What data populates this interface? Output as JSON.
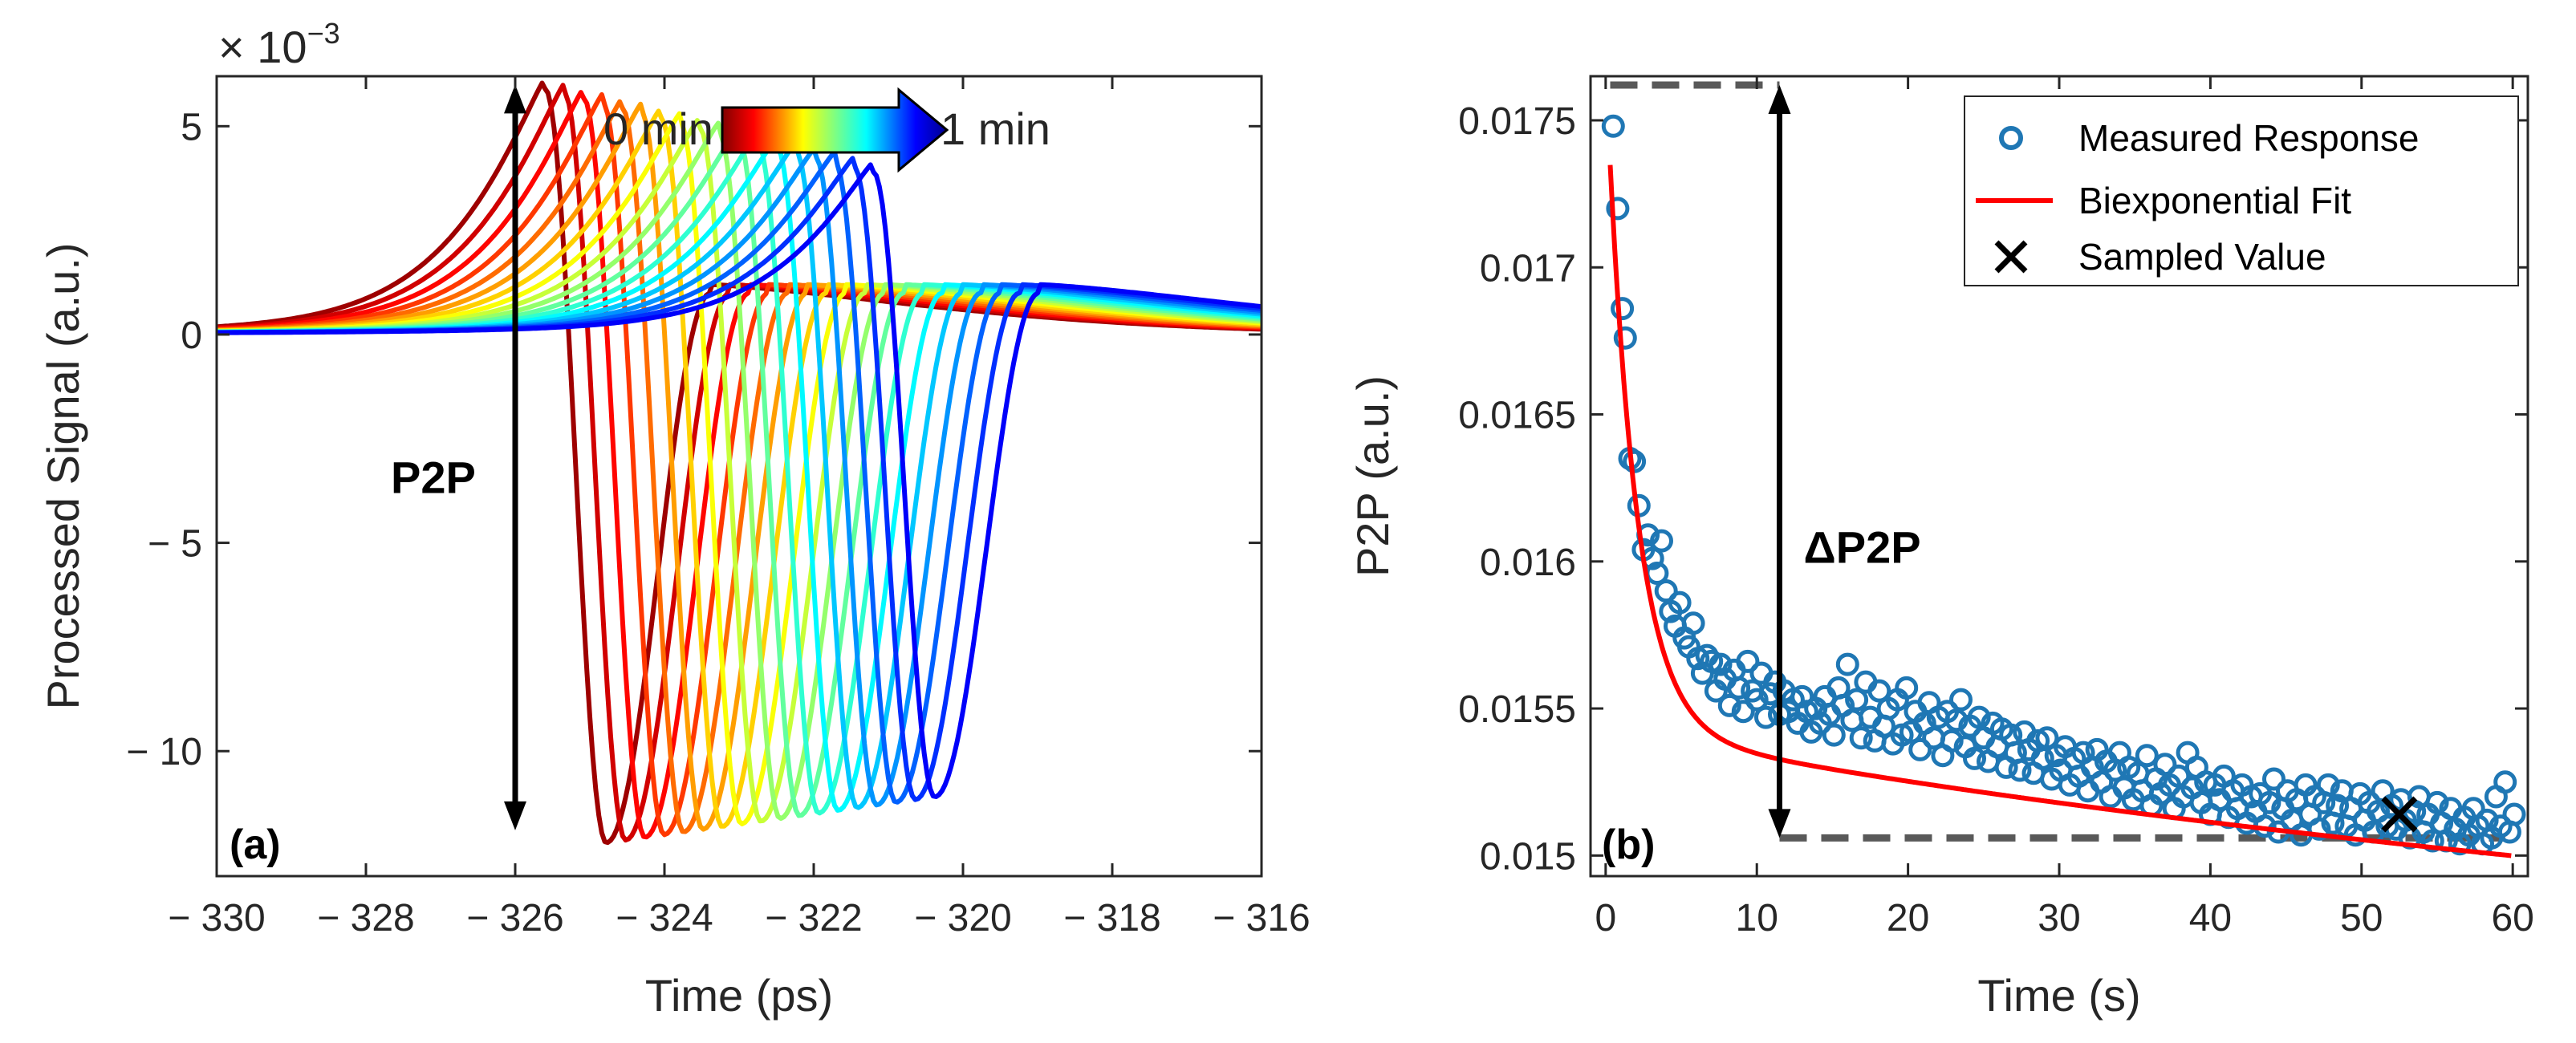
{
  "chart_data": [
    {
      "type": "line",
      "panel_label": "(a)",
      "xlabel": "Time (ps)",
      "ylabel": "Processed Signal (a.u.)",
      "y_multiplier": "× 10",
      "y_multiplier_exp": "−3",
      "xlim": [
        -330,
        -316
      ],
      "ylim": [
        -13,
        6.2
      ],
      "xticks": [
        -330,
        -328,
        -326,
        -324,
        -322,
        -320,
        -318,
        -316
      ],
      "xtick_labels": [
        "− 330",
        "− 328",
        "− 326",
        "− 324",
        "− 322",
        "− 320",
        "− 318",
        "− 316"
      ],
      "yticks": [
        5,
        0,
        -5,
        -10
      ],
      "ytick_labels": [
        "5",
        "0",
        "− 5",
        "− 10"
      ],
      "grid": false,
      "colormap_label_start": "0 min",
      "colormap_label_end": "1 min",
      "arrow_label": "P2P",
      "arrow_x": -326,
      "arrow_range": [
        -11.9,
        6.0
      ],
      "series_count": 18,
      "first_pulse_peak_time": -325.6,
      "last_pulse_peak_time": -321.2,
      "first_pulse_peak": 5.9,
      "last_pulse_peak": 3.9,
      "first_pulse_trough": -12.2,
      "last_pulse_trough": -11.1,
      "lobe_value": 1.0
    },
    {
      "type": "scatter",
      "panel_label": "(b)",
      "xlabel": "Time (s)",
      "ylabel": "P2P (a.u.)",
      "xlim": [
        -1,
        61
      ],
      "ylim": [
        0.01493,
        0.01765
      ],
      "xticks": [
        0,
        10,
        20,
        30,
        40,
        50,
        60
      ],
      "xtick_labels": [
        "0",
        "10",
        "20",
        "30",
        "40",
        "50",
        "60"
      ],
      "yticks": [
        0.015,
        0.0155,
        0.016,
        0.0165,
        0.017,
        0.0175
      ],
      "ytick_labels": [
        "0.015",
        "0.0155",
        "0.016",
        "0.0165",
        "0.017",
        "0.0175"
      ],
      "grid": false,
      "legend_position": "top-right",
      "arrow_label": "ΔP2P",
      "arrow_x": 11.5,
      "upper_level": 0.01762,
      "lower_level": 0.01506,
      "upper_line_x": [
        0.3,
        11.5
      ],
      "lower_line_x": [
        11.5,
        59.5
      ],
      "sampled_value": {
        "x": 52.5,
        "y": 0.01514
      },
      "series": [
        {
          "name": "Measured Response",
          "marker": "circle",
          "color": "#1f77b4"
        },
        {
          "name": "Biexponential Fit",
          "marker": "line",
          "color": "#ff0000",
          "fit": {
            "c": 0.015517,
            "a1": 0.00188,
            "tau1": 1.88,
            "a2": -8.1e-06,
            "tau2_inv": 0.0,
            "slope": -7.7e-06,
            "x0": 11.5
          }
        },
        {
          "name": "Sampled Value",
          "marker": "x",
          "color": "#000000"
        }
      ],
      "measured_points": [
        [
          0.5,
          0.01748
        ],
        [
          0.8,
          0.0172
        ],
        [
          1.1,
          0.01686
        ],
        [
          1.3,
          0.01676
        ],
        [
          1.6,
          0.01635
        ],
        [
          1.9,
          0.01634
        ],
        [
          2.2,
          0.01619
        ],
        [
          2.5,
          0.01604
        ],
        [
          2.8,
          0.01609
        ],
        [
          3.1,
          0.01601
        ],
        [
          3.4,
          0.01596
        ],
        [
          3.7,
          0.01607
        ],
        [
          4.0,
          0.0159
        ],
        [
          4.3,
          0.01583
        ],
        [
          4.6,
          0.01578
        ],
        [
          4.9,
          0.01586
        ],
        [
          5.2,
          0.01574
        ],
        [
          5.5,
          0.01571
        ],
        [
          5.8,
          0.01579
        ],
        [
          6.1,
          0.01567
        ],
        [
          6.4,
          0.01562
        ],
        [
          6.7,
          0.01568
        ],
        [
          7.0,
          0.01566
        ],
        [
          7.3,
          0.01556
        ],
        [
          7.6,
          0.01565
        ],
        [
          7.9,
          0.0156
        ],
        [
          8.2,
          0.01551
        ],
        [
          8.5,
          0.01563
        ],
        [
          8.8,
          0.01557
        ],
        [
          9.1,
          0.01549
        ],
        [
          9.4,
          0.01566
        ],
        [
          9.7,
          0.01556
        ],
        [
          10.0,
          0.01553
        ],
        [
          10.3,
          0.01562
        ],
        [
          10.6,
          0.01547
        ],
        [
          10.9,
          0.01555
        ],
        [
          11.2,
          0.01559
        ],
        [
          11.5,
          0.01548
        ],
        [
          11.8,
          0.01556
        ],
        [
          12.1,
          0.01549
        ],
        [
          12.4,
          0.01553
        ],
        [
          12.7,
          0.01545
        ],
        [
          13.0,
          0.01554
        ],
        [
          13.3,
          0.01549
        ],
        [
          13.6,
          0.01542
        ],
        [
          13.9,
          0.0155
        ],
        [
          14.2,
          0.01545
        ],
        [
          14.5,
          0.01554
        ],
        [
          14.8,
          0.01548
        ],
        [
          15.1,
          0.01541
        ],
        [
          15.4,
          0.01557
        ],
        [
          15.7,
          0.01551
        ],
        [
          16.0,
          0.01565
        ],
        [
          16.3,
          0.01546
        ],
        [
          16.6,
          0.01553
        ],
        [
          16.9,
          0.0154
        ],
        [
          17.2,
          0.01559
        ],
        [
          17.5,
          0.01547
        ],
        [
          17.8,
          0.01539
        ],
        [
          18.1,
          0.01556
        ],
        [
          18.4,
          0.01544
        ],
        [
          18.7,
          0.0155
        ],
        [
          19.0,
          0.01538
        ],
        [
          19.3,
          0.01553
        ],
        [
          19.6,
          0.01541
        ],
        [
          19.9,
          0.01557
        ],
        [
          20.2,
          0.01542
        ],
        [
          20.5,
          0.01549
        ],
        [
          20.8,
          0.01536
        ],
        [
          21.1,
          0.01545
        ],
        [
          21.4,
          0.01552
        ],
        [
          21.7,
          0.0154
        ],
        [
          22.0,
          0.01547
        ],
        [
          22.3,
          0.01534
        ],
        [
          22.6,
          0.01549
        ],
        [
          22.9,
          0.01539
        ],
        [
          23.2,
          0.01546
        ],
        [
          23.5,
          0.01553
        ],
        [
          23.8,
          0.01537
        ],
        [
          24.1,
          0.01544
        ],
        [
          24.4,
          0.01533
        ],
        [
          24.7,
          0.01547
        ],
        [
          25.0,
          0.0154
        ],
        [
          25.3,
          0.01532
        ],
        [
          25.6,
          0.01545
        ],
        [
          25.9,
          0.01537
        ],
        [
          26.2,
          0.01543
        ],
        [
          26.5,
          0.0153
        ],
        [
          26.8,
          0.01541
        ],
        [
          27.1,
          0.01535
        ],
        [
          27.4,
          0.01529
        ],
        [
          27.7,
          0.01542
        ],
        [
          28.0,
          0.01536
        ],
        [
          28.3,
          0.01528
        ],
        [
          28.6,
          0.01539
        ],
        [
          28.9,
          0.01533
        ],
        [
          29.2,
          0.0154
        ],
        [
          29.5,
          0.01526
        ],
        [
          29.8,
          0.01534
        ],
        [
          30.1,
          0.01529
        ],
        [
          30.4,
          0.01537
        ],
        [
          30.7,
          0.01524
        ],
        [
          31.0,
          0.01533
        ],
        [
          31.3,
          0.01527
        ],
        [
          31.6,
          0.01535
        ],
        [
          31.9,
          0.01522
        ],
        [
          32.2,
          0.0153
        ],
        [
          32.5,
          0.01536
        ],
        [
          32.8,
          0.01525
        ],
        [
          33.1,
          0.01532
        ],
        [
          33.4,
          0.0152
        ],
        [
          33.7,
          0.01529
        ],
        [
          34.0,
          0.01535
        ],
        [
          34.3,
          0.01523
        ],
        [
          34.6,
          0.0153
        ],
        [
          34.9,
          0.01519
        ],
        [
          35.2,
          0.01528
        ],
        [
          35.5,
          0.01522
        ],
        [
          35.8,
          0.01534
        ],
        [
          36.1,
          0.01517
        ],
        [
          36.4,
          0.01526
        ],
        [
          36.7,
          0.01521
        ],
        [
          37.0,
          0.01531
        ],
        [
          37.3,
          0.01524
        ],
        [
          37.6,
          0.01516
        ],
        [
          37.9,
          0.01527
        ],
        [
          38.2,
          0.0152
        ],
        [
          38.5,
          0.01535
        ],
        [
          38.8,
          0.01523
        ],
        [
          39.1,
          0.0153
        ],
        [
          39.4,
          0.01518
        ],
        [
          39.7,
          0.01525
        ],
        [
          40.0,
          0.01514
        ],
        [
          40.3,
          0.01524
        ],
        [
          40.6,
          0.01519
        ],
        [
          40.9,
          0.01527
        ],
        [
          41.2,
          0.01513
        ],
        [
          41.5,
          0.01522
        ],
        [
          41.8,
          0.01516
        ],
        [
          42.1,
          0.01524
        ],
        [
          42.4,
          0.01511
        ],
        [
          42.7,
          0.0152
        ],
        [
          43.0,
          0.01515
        ],
        [
          43.3,
          0.01521
        ],
        [
          43.6,
          0.0151
        ],
        [
          43.9,
          0.01518
        ],
        [
          44.2,
          0.01526
        ],
        [
          44.5,
          0.01508
        ],
        [
          44.8,
          0.01516
        ],
        [
          45.1,
          0.01522
        ],
        [
          45.4,
          0.01512
        ],
        [
          45.7,
          0.01519
        ],
        [
          46.0,
          0.01507
        ],
        [
          46.3,
          0.01524
        ],
        [
          46.6,
          0.01514
        ],
        [
          46.9,
          0.0152
        ],
        [
          47.2,
          0.01509
        ],
        [
          47.5,
          0.01518
        ],
        [
          47.8,
          0.01524
        ],
        [
          48.1,
          0.01511
        ],
        [
          48.4,
          0.01517
        ],
        [
          48.7,
          0.01522
        ],
        [
          49.0,
          0.0151
        ],
        [
          49.3,
          0.01516
        ],
        [
          49.6,
          0.01507
        ],
        [
          49.9,
          0.01521
        ],
        [
          50.2,
          0.01512
        ],
        [
          50.5,
          0.01518
        ],
        [
          50.8,
          0.01508
        ],
        [
          51.1,
          0.01515
        ],
        [
          51.4,
          0.01522
        ],
        [
          51.7,
          0.0151
        ],
        [
          52.0,
          0.01517
        ],
        [
          52.3,
          0.01509
        ],
        [
          52.6,
          0.01519
        ],
        [
          52.9,
          0.01512
        ],
        [
          53.2,
          0.01506
        ],
        [
          53.5,
          0.01515
        ],
        [
          53.8,
          0.0152
        ],
        [
          54.1,
          0.01508
        ],
        [
          54.4,
          0.01514
        ],
        [
          54.7,
          0.01505
        ],
        [
          55.0,
          0.01518
        ],
        [
          55.3,
          0.01511
        ],
        [
          55.6,
          0.01505
        ],
        [
          55.9,
          0.01516
        ],
        [
          56.2,
          0.01509
        ],
        [
          56.5,
          0.01504
        ],
        [
          56.8,
          0.01513
        ],
        [
          57.1,
          0.01507
        ],
        [
          57.4,
          0.01516
        ],
        [
          57.7,
          0.0151
        ],
        [
          58.0,
          0.01504
        ],
        [
          58.3,
          0.01512
        ],
        [
          58.6,
          0.01506
        ],
        [
          58.9,
          0.0152
        ],
        [
          59.2,
          0.0151
        ],
        [
          59.5,
          0.01525
        ],
        [
          59.8,
          0.01508
        ],
        [
          60.1,
          0.01514
        ]
      ]
    }
  ]
}
